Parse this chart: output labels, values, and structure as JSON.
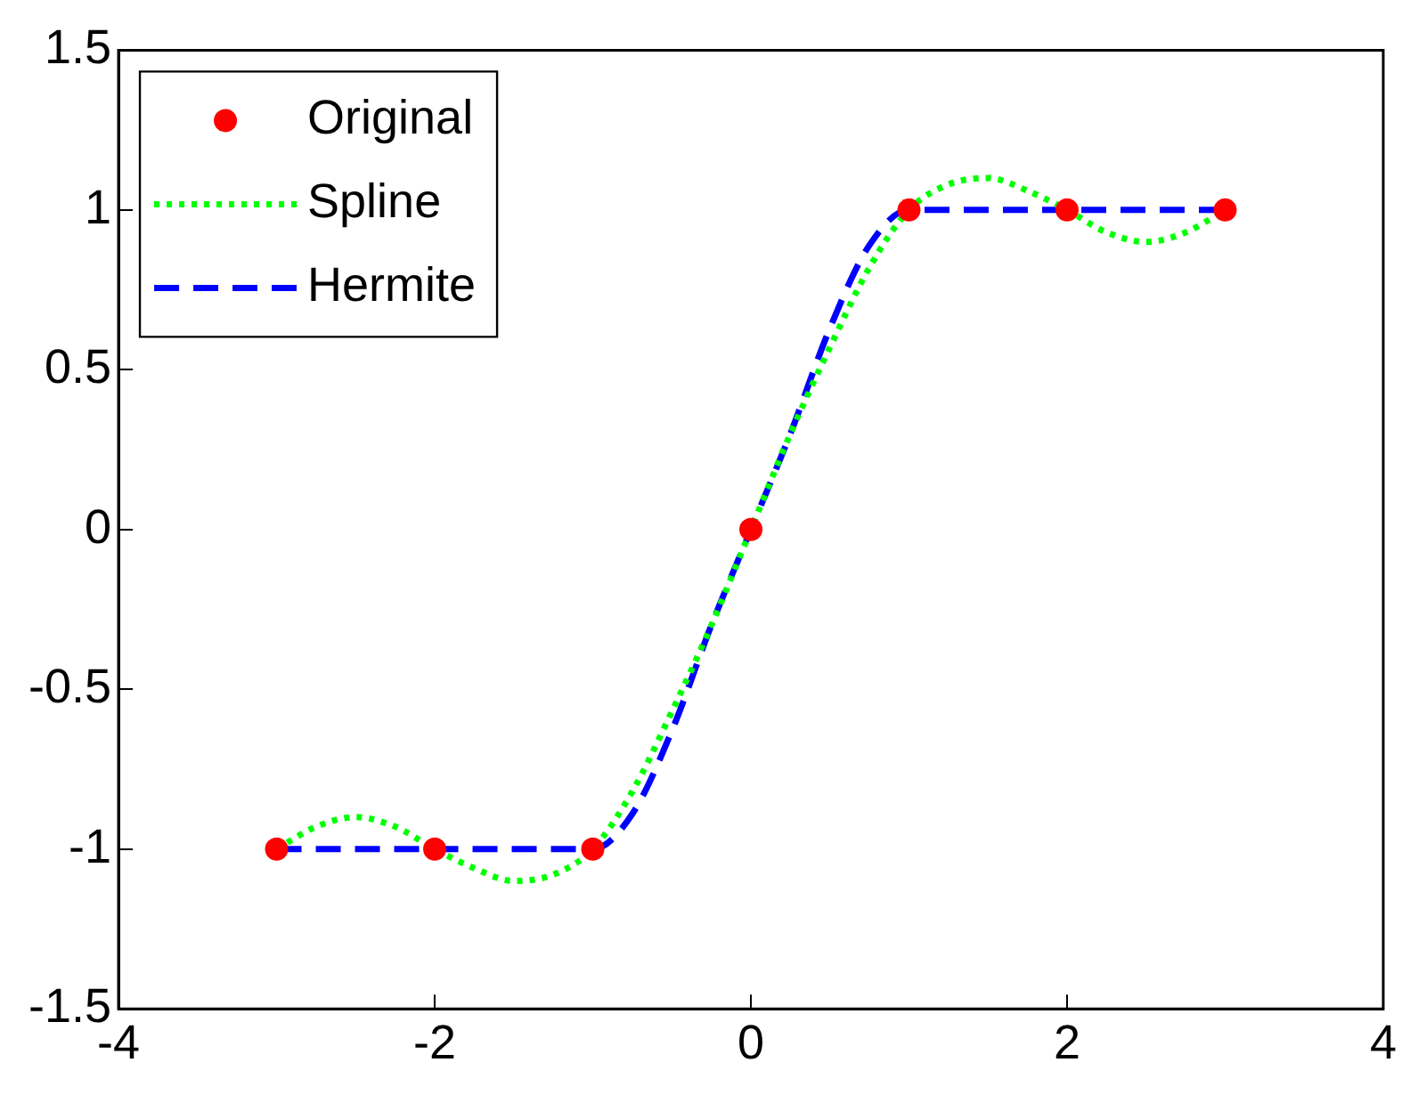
{
  "chart_data": {
    "type": "line",
    "xlim": [
      -4,
      4
    ],
    "xticks": [
      -4,
      -2,
      0,
      2,
      4
    ],
    "ylim": [
      -1.5,
      1.5
    ],
    "yticks": [
      -1.5,
      -1,
      -0.5,
      0,
      0.5,
      1,
      1.5
    ],
    "grid": false,
    "legend": "top left",
    "series": [
      {
        "name": "Original",
        "type": "scatter",
        "marker": "circle",
        "color": "#ff0000",
        "x": [
          -3,
          -2,
          -1,
          0,
          1,
          2,
          3
        ],
        "values": [
          -1,
          -1,
          -1,
          0,
          1,
          1,
          1
        ]
      },
      {
        "name": "Spline",
        "type": "line",
        "line_style": "dotted",
        "marker": "none",
        "color": "#00ff00",
        "x": [
          -3,
          -2.75,
          -2.5,
          -2.25,
          -2,
          -1.75,
          -1.5,
          -1.25,
          -1,
          -0.75,
          -0.5,
          -0.25,
          0,
          0.25,
          0.5,
          0.75,
          1,
          1.25,
          1.5,
          1.75,
          2,
          2.25,
          2.5,
          2.75,
          3
        ],
        "values": [
          -1,
          -0.93,
          -0.9,
          -0.93,
          -1,
          -1.06,
          -1.1,
          -1.08,
          -1,
          -0.82,
          -0.57,
          -0.3,
          0,
          0.3,
          0.57,
          0.82,
          1,
          1.08,
          1.1,
          1.06,
          1,
          0.93,
          0.9,
          0.93,
          1
        ]
      },
      {
        "name": "Hermite",
        "type": "line",
        "line_style": "dashed",
        "marker": "none",
        "color": "#0000ff",
        "x": [
          -3,
          -2,
          -1,
          -0.75,
          -0.5,
          -0.25,
          0,
          0.25,
          0.5,
          0.75,
          1,
          2,
          3
        ],
        "values": [
          -1,
          -1,
          -1,
          -0.89,
          -0.63,
          -0.3,
          0,
          0.3,
          0.63,
          0.89,
          1,
          1,
          1
        ]
      }
    ]
  }
}
